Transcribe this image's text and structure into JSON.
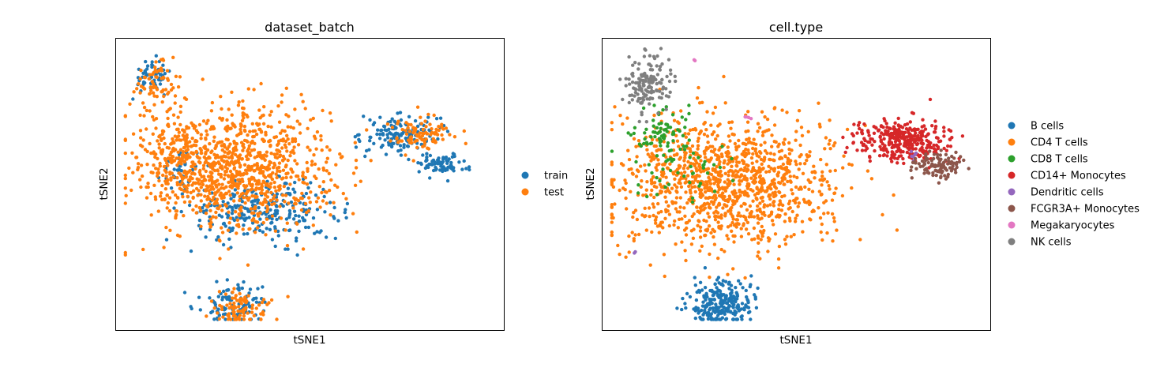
{
  "colors": {
    "blue": "#1f77b4",
    "orange": "#ff7f0e",
    "green": "#2ca02c",
    "red": "#d62728",
    "purple": "#9467bd",
    "brown": "#8c564b",
    "pink": "#e377c2",
    "gray": "#7f7f7f"
  },
  "chart_data": [
    {
      "type": "scatter",
      "title": "dataset_batch",
      "xlabel": "tSNE1",
      "ylabel": "tSNE2",
      "xlim": [
        -50,
        50
      ],
      "ylim": [
        -50,
        50
      ],
      "grid": false,
      "ticks": false,
      "legend_placement": "right",
      "series": [
        {
          "name": "train",
          "color": "#1f77b4",
          "clusters": [
            {
              "cx": -42,
              "cy": 39,
              "sx": 2.5,
              "sy": 3,
              "n": 55
            },
            {
              "cx": -34,
              "cy": 6,
              "sx": 3,
              "sy": 4,
              "n": 40
            },
            {
              "cx": -12,
              "cy": -10,
              "sx": 10,
              "sy": 5,
              "n": 270
            },
            {
              "cx": 24,
              "cy": 18,
              "sx": 5,
              "sy": 3.5,
              "n": 150
            },
            {
              "cx": 35,
              "cy": 7,
              "sx": 3.5,
              "sy": 2,
              "n": 80
            },
            {
              "cx": -20,
              "cy": -43,
              "sx": 4.5,
              "sy": 4,
              "n": 100
            }
          ]
        },
        {
          "name": "test",
          "color": "#ff7f0e",
          "clusters": [
            {
              "cx": -40,
              "cy": 36,
              "sx": 3.5,
              "sy": 5,
              "n": 70
            },
            {
              "cx": -36,
              "cy": 10,
              "sx": 3,
              "sy": 6,
              "n": 90
            },
            {
              "cx": -20,
              "cy": 6,
              "sx": 13,
              "sy": 11,
              "n": 1020
            },
            {
              "cx": 30,
              "cy": 18,
              "sx": 4,
              "sy": 3,
              "n": 90
            },
            {
              "cx": -18,
              "cy": -45,
              "sx": 4,
              "sy": 3,
              "n": 90
            },
            {
              "cx": -39,
              "cy": 45,
              "sx": 0.3,
              "sy": 0.3,
              "n": 3
            },
            {
              "cx": -50,
              "cy": -25,
              "sx": 0.3,
              "sy": 0.3,
              "n": 2
            }
          ]
        }
      ]
    },
    {
      "type": "scatter",
      "title": "cell.type",
      "xlabel": "tSNE1",
      "ylabel": "tSNE2",
      "xlim": [
        -50,
        50
      ],
      "ylim": [
        -50,
        50
      ],
      "grid": false,
      "ticks": false,
      "legend_placement": "right",
      "series": [
        {
          "name": "B cells",
          "color": "#1f77b4",
          "clusters": [
            {
              "cx": -20,
              "cy": -43,
              "sx": 4,
              "sy": 4,
              "n": 260
            }
          ]
        },
        {
          "name": "CD4 T cells",
          "color": "#ff7f0e",
          "clusters": [
            {
              "cx": -18,
              "cy": 0,
              "sx": 14,
              "sy": 12,
              "n": 1150
            },
            {
              "cx": -38,
              "cy": 10,
              "sx": 2.5,
              "sy": 4,
              "n": 20
            }
          ]
        },
        {
          "name": "CD8 T cells",
          "color": "#2ca02c",
          "clusters": [
            {
              "cx": -37,
              "cy": 18,
              "sx": 4,
              "sy": 4,
              "n": 70
            },
            {
              "cx": -30,
              "cy": 5,
              "sx": 6,
              "sy": 6,
              "n": 50
            }
          ]
        },
        {
          "name": "CD14+ Monocytes",
          "color": "#d62728",
          "clusters": [
            {
              "cx": 28,
              "cy": 16,
              "sx": 6,
              "sy": 3.5,
              "n": 340
            }
          ]
        },
        {
          "name": "Dendritic cells",
          "color": "#9467bd",
          "clusters": [
            {
              "cx": 31,
              "cy": 11,
              "sx": 0.5,
              "sy": 1,
              "n": 6
            },
            {
              "cx": -43,
              "cy": -25,
              "sx": 0.3,
              "sy": 0.3,
              "n": 2
            }
          ]
        },
        {
          "name": "FCGR3A+ Monocytes",
          "color": "#8c564b",
          "clusters": [
            {
              "cx": 38,
              "cy": 7,
              "sx": 3.5,
              "sy": 2.5,
              "n": 110
            }
          ]
        },
        {
          "name": "Megakaryocytes",
          "color": "#e377c2",
          "clusters": [
            {
              "cx": -13,
              "cy": 24,
              "sx": 0.5,
              "sy": 0.5,
              "n": 4
            },
            {
              "cx": -27,
              "cy": 45,
              "sx": 0.3,
              "sy": 0.3,
              "n": 2
            }
          ]
        },
        {
          "name": "NK cells",
          "color": "#7f7f7f",
          "clusters": [
            {
              "cx": -40,
              "cy": 37,
              "sx": 3,
              "sy": 5,
              "n": 150
            }
          ]
        }
      ]
    }
  ]
}
